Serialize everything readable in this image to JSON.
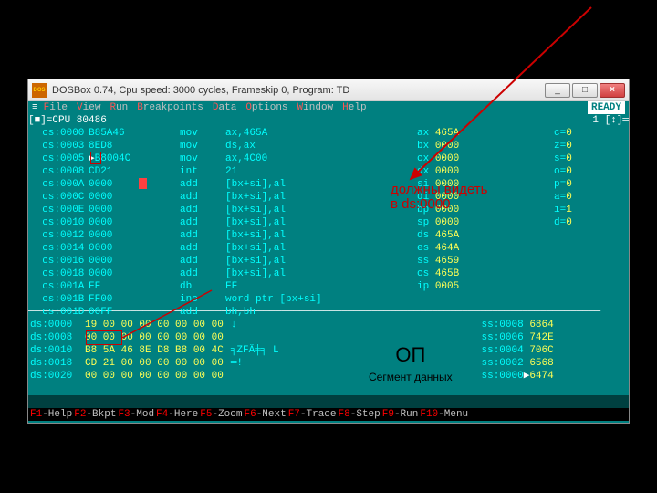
{
  "window": {
    "title": "DOSBox 0.74, Cpu speed:    3000 cycles, Frameskip  0, Program:     TD",
    "icon_label": "DOS",
    "buttons": {
      "min": "_",
      "max": "□",
      "close": "×"
    }
  },
  "menu": {
    "items": [
      {
        "hotkey": "F",
        "label": "ile"
      },
      {
        "hotkey": "V",
        "label": "iew"
      },
      {
        "hotkey": "R",
        "label": "un"
      },
      {
        "hotkey": "B",
        "label": "reakpoints"
      },
      {
        "hotkey": "D",
        "label": "ata"
      },
      {
        "hotkey": "O",
        "label": "ptions"
      },
      {
        "hotkey": "W",
        "label": "indow"
      },
      {
        "hotkey": "H",
        "label": "elp"
      }
    ],
    "sep": "≡",
    "ready": "READY"
  },
  "cpu_header": {
    "left": "[■]=CPU 80486",
    "right": "1    [↕]═"
  },
  "disasm": [
    {
      "addr": "cs:0000",
      "bytes": "B85A46",
      "mnem": "mov",
      "ops": "ax,465A"
    },
    {
      "addr": "cs:0003",
      "bytes": "8ED8",
      "mnem": "mov",
      "ops": "ds,ax"
    },
    {
      "addr": "cs:0005",
      "bytes": "B8004C",
      "mnem": "mov",
      "ops": "ax,4C00",
      "highlight": true
    },
    {
      "addr": "cs:0008",
      "bytes": "CD21",
      "mnem": "int",
      "ops": "21"
    },
    {
      "addr": "cs:000A",
      "bytes": "0000",
      "mnem": "add",
      "ops": "[bx+si],al",
      "cursor": true
    },
    {
      "addr": "cs:000C",
      "bytes": "0000",
      "mnem": "add",
      "ops": "[bx+si],al"
    },
    {
      "addr": "cs:000E",
      "bytes": "0000",
      "mnem": "add",
      "ops": "[bx+si],al"
    },
    {
      "addr": "cs:0010",
      "bytes": "0000",
      "mnem": "add",
      "ops": "[bx+si],al"
    },
    {
      "addr": "cs:0012",
      "bytes": "0000",
      "mnem": "add",
      "ops": "[bx+si],al"
    },
    {
      "addr": "cs:0014",
      "bytes": "0000",
      "mnem": "add",
      "ops": "[bx+si],al"
    },
    {
      "addr": "cs:0016",
      "bytes": "0000",
      "mnem": "add",
      "ops": "[bx+si],al"
    },
    {
      "addr": "cs:0018",
      "bytes": "0000",
      "mnem": "add",
      "ops": "[bx+si],al"
    },
    {
      "addr": "cs:001A",
      "bytes": "FF",
      "mnem": "db",
      "ops": "FF"
    },
    {
      "addr": "cs:001B",
      "bytes": "FF00",
      "mnem": "inc",
      "ops": "word ptr [bx+si]"
    },
    {
      "addr": "cs:001D",
      "bytes": "00FF",
      "mnem": "add",
      "ops": "bh,bh"
    }
  ],
  "regs": [
    {
      "name": "ax",
      "val": "465A"
    },
    {
      "name": "bx",
      "val": "0000"
    },
    {
      "name": "cx",
      "val": "0000"
    },
    {
      "name": "dx",
      "val": "0000"
    },
    {
      "name": "si",
      "val": "0000"
    },
    {
      "name": "di",
      "val": "0000"
    },
    {
      "name": "bp",
      "val": "0000"
    },
    {
      "name": "sp",
      "val": "0000"
    },
    {
      "name": "ds",
      "val": "465A"
    },
    {
      "name": "es",
      "val": "464A"
    },
    {
      "name": "ss",
      "val": "4659"
    },
    {
      "name": "cs",
      "val": "465B"
    },
    {
      "name": "ip",
      "val": "0005"
    }
  ],
  "flags": [
    {
      "name": "c",
      "val": "0"
    },
    {
      "name": "z",
      "val": "0"
    },
    {
      "name": "s",
      "val": "0"
    },
    {
      "name": "o",
      "val": "0"
    },
    {
      "name": "p",
      "val": "0"
    },
    {
      "name": "a",
      "val": "0"
    },
    {
      "name": "i",
      "val": "1"
    },
    {
      "name": "d",
      "val": "0"
    }
  ],
  "dump": [
    {
      "addr": "ds:0000",
      "hex": "19 00 00 00 00 00 00 00",
      "ascii": "↓"
    },
    {
      "addr": "ds:0008",
      "hex": "00 00 00 00 00 00 00 00",
      "ascii": ""
    },
    {
      "addr": "ds:0010",
      "hex": "B8 5A 46 8E D8 B8 00 4C",
      "ascii": "╕ZFÄ╪╕ L"
    },
    {
      "addr": "ds:0018",
      "hex": "CD 21 00 00 00 00 00 00",
      "ascii": "═!"
    },
    {
      "addr": "ds:0020",
      "hex": "00 00 00 00 00 00 00 00",
      "ascii": ""
    }
  ],
  "stack": [
    {
      "addr": "ss:0008",
      "val": "6864"
    },
    {
      "addr": "ss:0006",
      "val": "742E"
    },
    {
      "addr": "ss:0004",
      "val": "706C"
    },
    {
      "addr": "ss:0002",
      "val": "6568"
    },
    {
      "addr": "ss:0000",
      "val": "6474",
      "ptr": true
    }
  ],
  "fnkeys": [
    {
      "key": "F1",
      "label": "-Help"
    },
    {
      "key": "F2",
      "label": "-Bkpt"
    },
    {
      "key": "F3",
      "label": "-Mod"
    },
    {
      "key": "F4",
      "label": "-Here"
    },
    {
      "key": "F5",
      "label": "-Zoom"
    },
    {
      "key": "F6",
      "label": "-Next"
    },
    {
      "key": "F7",
      "label": "-Trace"
    },
    {
      "key": "F8",
      "label": "-Step"
    },
    {
      "key": "F9",
      "label": "-Run"
    },
    {
      "key": "F10",
      "label": "-Menu"
    }
  ],
  "annotations": {
    "line1": "должны видеть",
    "line2": "в ds:0000",
    "op_title": "ОП",
    "op_sub": "Сегмент данных"
  },
  "colors": {
    "bg": "#008080",
    "cyan": "#00ffff",
    "yellow": "#ffff55",
    "red_text": "#ff5454",
    "anno_red": "#cc0000"
  }
}
